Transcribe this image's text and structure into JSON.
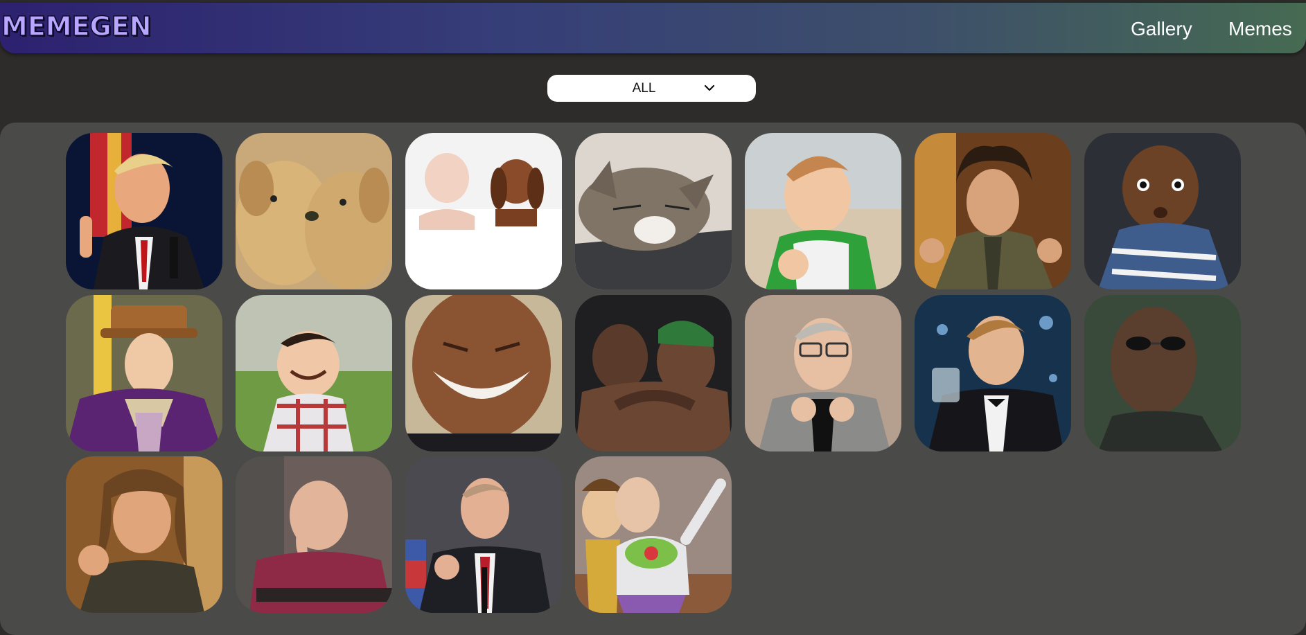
{
  "header": {
    "logo": "MEMEGEN",
    "nav": {
      "gallery": "Gallery",
      "memes": "Memes"
    }
  },
  "filter": {
    "value": "ALL",
    "icon": "chevron-down-icon"
  },
  "gallery": {
    "images": [
      {
        "name": "Man in suit pointing finger up, speaking at podium"
      },
      {
        "name": "Two golden retriever puppies"
      },
      {
        "name": "Sleeping baby and puppy under white blanket"
      },
      {
        "name": "Tabby cat sleeping on laptop keyboard"
      },
      {
        "name": "Toddler on beach clenching fist"
      },
      {
        "name": "Man with wild hair gesturing"
      },
      {
        "name": "Baby with surprised face"
      },
      {
        "name": "Man in purple coat and top hat, hand on chin"
      },
      {
        "name": "Laughing toddler in plaid shirt"
      },
      {
        "name": "Man laughing with eyes closed"
      },
      {
        "name": "Two basketball players embracing"
      },
      {
        "name": "Man pointing both fingers at camera"
      },
      {
        "name": "Man in tuxedo raising a glass"
      },
      {
        "name": "Bald man with dark sunglasses"
      },
      {
        "name": "Long-haired man making circle gesture"
      },
      {
        "name": "Man in red uniform, hand on face, smiling"
      },
      {
        "name": "Man in suit gesturing while speaking"
      },
      {
        "name": "Two cartoon toys, one gesturing outward"
      }
    ]
  }
}
